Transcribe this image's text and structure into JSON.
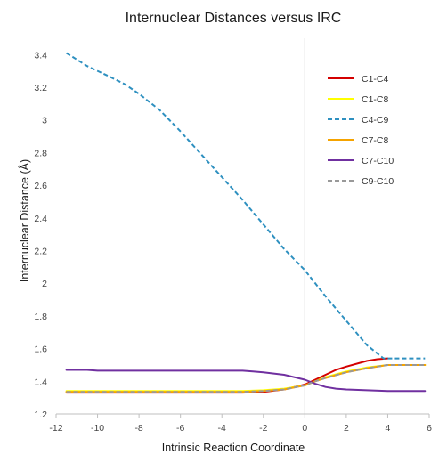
{
  "chart_data": {
    "type": "line",
    "title": "Internuclear Distances versus IRC",
    "xlabel": "Intrinsic Reaction Coordinate",
    "ylabel": "Internuclear Distance (Å)",
    "xlim": [
      -12,
      6
    ],
    "ylim": [
      1.2,
      3.5
    ],
    "x_ticks": [
      -12,
      -10,
      -8,
      -6,
      -4,
      -2,
      0,
      2,
      4,
      6
    ],
    "y_ticks": [
      1.2,
      1.4,
      1.6,
      1.8,
      2,
      2.2,
      2.4,
      2.6,
      2.8,
      3,
      3.2,
      3.4
    ],
    "grid": false,
    "legend_position": "right",
    "series": [
      {
        "name": "C1-C4",
        "color": "#d40000",
        "dash": "solid",
        "x": [
          -11.5,
          -10,
          -8,
          -6,
          -4,
          -3,
          -2,
          -1,
          0,
          0.5,
          1,
          1.5,
          2,
          3,
          3.5,
          4
        ],
        "y": [
          1.33,
          1.33,
          1.33,
          1.33,
          1.33,
          1.33,
          1.335,
          1.35,
          1.38,
          1.41,
          1.44,
          1.47,
          1.49,
          1.525,
          1.535,
          1.54
        ]
      },
      {
        "name": "C1-C8",
        "color": "#ffff00",
        "dash": "solid",
        "x": [
          -11.5,
          -10,
          -8,
          -6,
          -4,
          -3,
          -2,
          -1,
          0,
          0.5,
          1,
          2,
          3,
          4,
          5,
          5.8
        ],
        "y": [
          1.34,
          1.34,
          1.34,
          1.34,
          1.34,
          1.34,
          1.345,
          1.355,
          1.375,
          1.4,
          1.425,
          1.46,
          1.485,
          1.5,
          1.5,
          1.5
        ]
      },
      {
        "name": "C4-C9",
        "color": "#2e90c0",
        "dash": "dashed",
        "x": [
          -11.5,
          -10.5,
          -9.5,
          -8.7,
          -8,
          -7,
          -6,
          -5,
          -4,
          -3,
          -2,
          -1,
          0,
          1,
          2,
          3,
          3.8,
          4,
          5,
          5.8
        ],
        "y": [
          3.41,
          3.33,
          3.27,
          3.22,
          3.16,
          3.06,
          2.93,
          2.79,
          2.65,
          2.51,
          2.36,
          2.21,
          2.08,
          1.92,
          1.77,
          1.62,
          1.54,
          1.54,
          1.54,
          1.54
        ]
      },
      {
        "name": "C7-C8",
        "color": "#f5a300",
        "dash": "solid",
        "x": [
          -11.5,
          -10,
          -8,
          -6,
          -4,
          -3,
          -2,
          -1,
          0,
          0.5,
          1,
          2,
          3,
          4,
          5,
          5.8
        ],
        "y": [
          1.335,
          1.335,
          1.335,
          1.335,
          1.335,
          1.335,
          1.34,
          1.35,
          1.375,
          1.4,
          1.42,
          1.455,
          1.48,
          1.5,
          1.5,
          1.5
        ]
      },
      {
        "name": "C7-C10",
        "color": "#7030a0",
        "dash": "solid",
        "x": [
          -11.5,
          -10.5,
          -10,
          -8,
          -6,
          -4,
          -3,
          -2.5,
          -2,
          -1,
          0,
          0.5,
          1,
          1.5,
          2,
          3,
          4,
          5,
          5.8
        ],
        "y": [
          1.47,
          1.47,
          1.465,
          1.465,
          1.465,
          1.465,
          1.465,
          1.46,
          1.455,
          1.44,
          1.41,
          1.385,
          1.365,
          1.355,
          1.35,
          1.345,
          1.34,
          1.34,
          1.34
        ]
      },
      {
        "name": "C9-C10",
        "color": "#999999",
        "dash": "dashed",
        "x": [
          -11.5,
          -10,
          -8,
          -6,
          -4,
          -3,
          -2,
          -1,
          0,
          0.5,
          1,
          2,
          3,
          4,
          5,
          5.8
        ],
        "y": [
          1.335,
          1.335,
          1.335,
          1.335,
          1.335,
          1.335,
          1.34,
          1.35,
          1.375,
          1.4,
          1.42,
          1.455,
          1.48,
          1.5,
          1.5,
          1.5
        ]
      }
    ]
  }
}
